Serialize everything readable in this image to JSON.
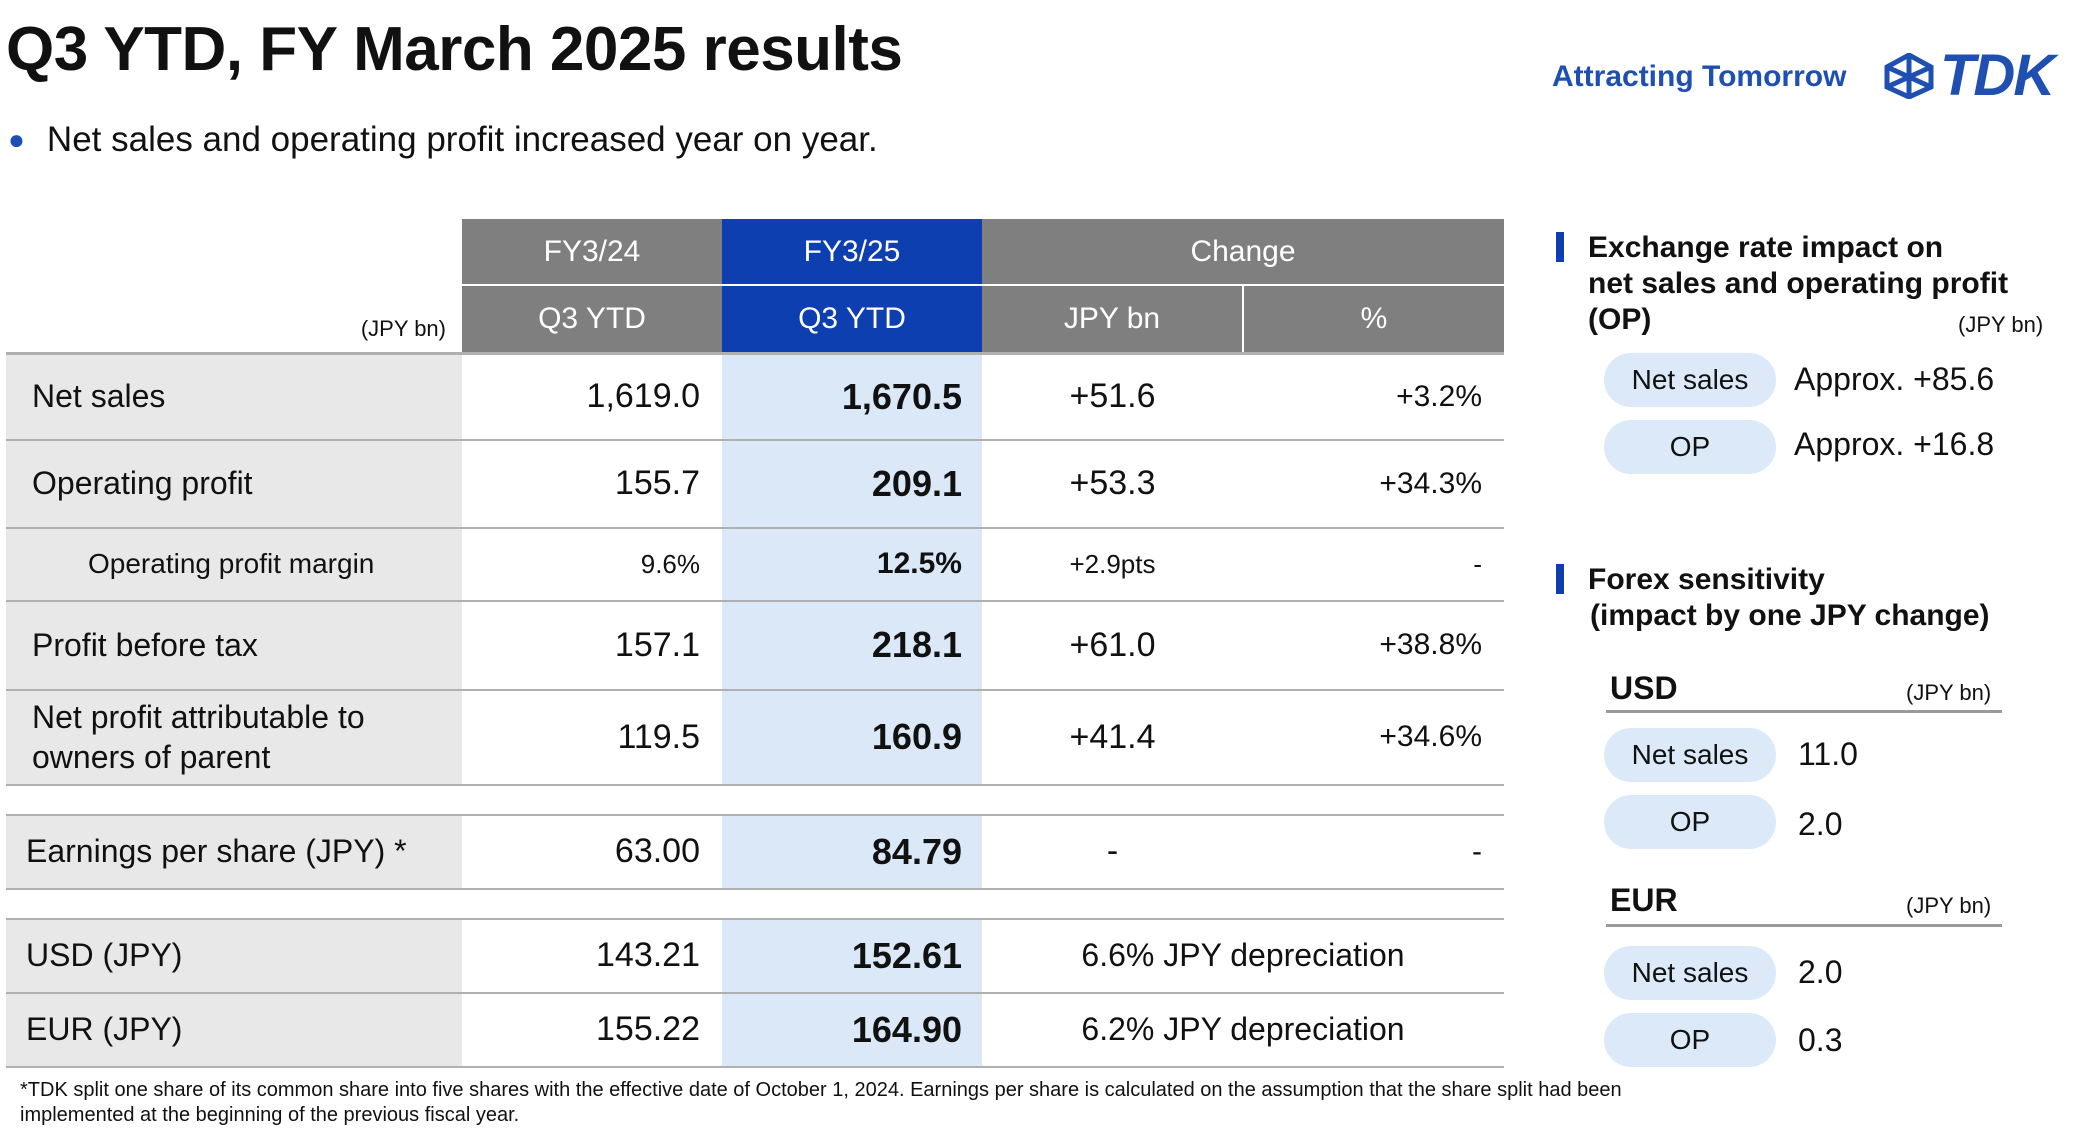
{
  "header": {
    "title": "Q3 YTD, FY March 2025 results",
    "tagline": "Attracting Tomorrow",
    "logo_text": "TDK",
    "brand_color": "#1f4fb0"
  },
  "bullet": "Net sales and operating profit increased year on year.",
  "table": {
    "unit": "(JPY bn)",
    "col_fy_prev": "FY3/24",
    "col_fy_cur": "FY3/25",
    "col_change": "Change",
    "sub_prev": "Q3 YTD",
    "sub_cur": "Q3 YTD",
    "sub_jpy": "JPY bn",
    "sub_pct": "%",
    "rows": [
      {
        "label": "Net sales",
        "prev": "1,619.0",
        "cur": "1,670.5",
        "chg": "+51.6",
        "pct": "+3.2%"
      },
      {
        "label": "Operating profit",
        "prev": "155.7",
        "cur": "209.1",
        "chg": "+53.3",
        "pct": "+34.3%"
      },
      {
        "label": "Operating profit margin",
        "prev": "9.6%",
        "cur": "12.5%",
        "chg": "+2.9pts",
        "pct": "-"
      },
      {
        "label": "Profit before tax",
        "prev": "157.1",
        "cur": "218.1",
        "chg": "+61.0",
        "pct": "+38.8%"
      },
      {
        "label1": "Net profit attributable to",
        "label2": "owners of parent",
        "prev": "119.5",
        "cur": "160.9",
        "chg": "+41.4",
        "pct": "+34.6%"
      },
      {
        "label": "Earnings per share (JPY) *",
        "prev": "63.00",
        "cur": "84.79",
        "chg": "-",
        "pct": "-"
      },
      {
        "label": "USD (JPY)",
        "prev": "143.21",
        "cur": "152.61",
        "chg": "6.6% JPY depreciation"
      },
      {
        "label": "EUR (JPY)",
        "prev": "155.22",
        "cur": "164.90",
        "chg": "6.2% JPY depreciation"
      }
    ]
  },
  "exchange": {
    "heading1": "Exchange rate impact on",
    "heading2": "net sales and operating profit",
    "heading3": "(OP)",
    "unit": "(JPY bn)",
    "items": [
      {
        "label": "Net sales",
        "value": "Approx. +85.6"
      },
      {
        "label": "OP",
        "value": "Approx. +16.8"
      }
    ]
  },
  "sensitivity": {
    "heading1": "Forex sensitivity",
    "heading2": "(impact by one JPY change)",
    "usd": {
      "title": "USD",
      "unit": "(JPY bn)",
      "items": [
        {
          "label": "Net sales",
          "value": "11.0"
        },
        {
          "label": "OP",
          "value": "2.0"
        }
      ]
    },
    "eur": {
      "title": "EUR",
      "unit": "(JPY bn)",
      "items": [
        {
          "label": "Net sales",
          "value": "2.0"
        },
        {
          "label": "OP",
          "value": "0.3"
        }
      ]
    }
  },
  "footnote1": "*TDK split one share of its common share into five shares with the effective date of October 1, 2024. Earnings per share is calculated on the assumption that the share split had been",
  "footnote2": "implemented at the beginning of the previous fiscal year."
}
